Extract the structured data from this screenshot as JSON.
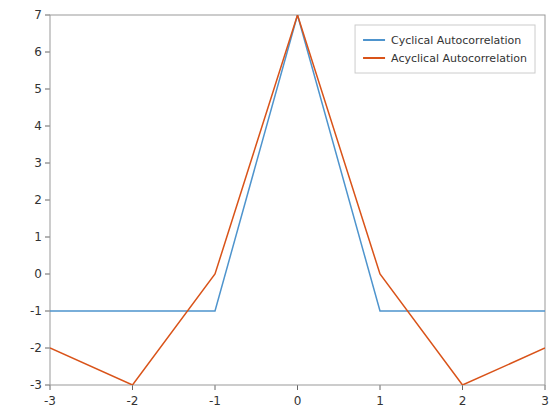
{
  "chart_data": {
    "type": "line",
    "series": [
      {
        "name": "Cyclical Autocorrelation",
        "color": "#4e94cd",
        "x": [
          -3,
          -1,
          -1,
          0,
          1,
          1,
          3
        ],
        "values": [
          -1,
          -1,
          -1,
          7,
          -1,
          -1,
          -1
        ]
      },
      {
        "name": "Acyclical Autocorrelation",
        "color": "#d95319",
        "x": [
          -3,
          -2,
          -1,
          0,
          1,
          2,
          3
        ],
        "values": [
          -2,
          -3,
          0,
          7,
          0,
          -3,
          -2
        ]
      }
    ],
    "xlim": [
      -3,
      3
    ],
    "ylim": [
      -3,
      7
    ],
    "xticks": [
      -3,
      -2,
      -1,
      0,
      1,
      2,
      3
    ],
    "yticks": [
      -3,
      -2,
      -1,
      0,
      1,
      2,
      3,
      4,
      5,
      6,
      7
    ],
    "grid": false,
    "legend": "upper right"
  }
}
